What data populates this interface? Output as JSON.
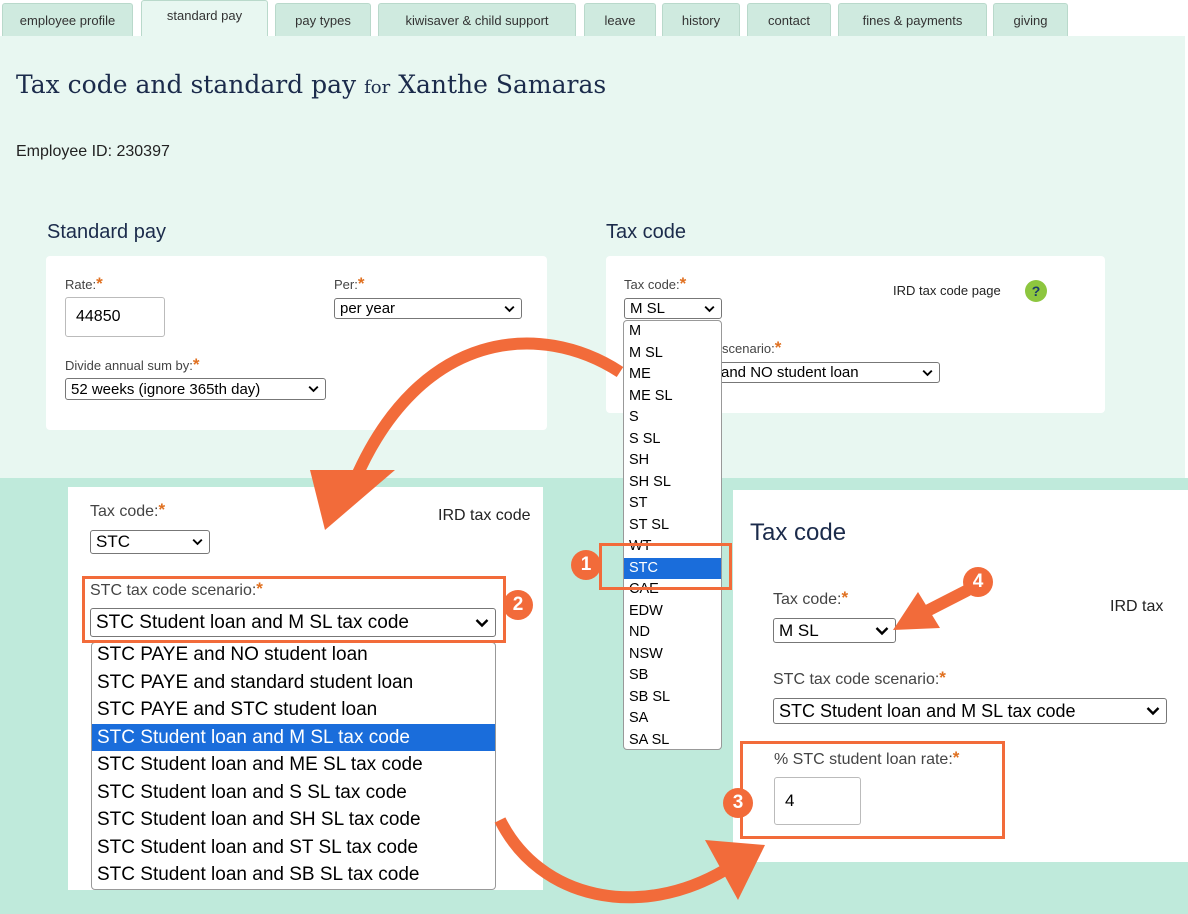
{
  "tabs": [
    "employee profile",
    "standard pay",
    "pay types",
    "kiwisaver & child support",
    "leave",
    "history",
    "contact",
    "fines & payments",
    "giving"
  ],
  "header": {
    "title": "Tax code and standard pay",
    "for": "for",
    "employee_name": "Xanthe Samaras",
    "employee_id": "Employee ID: 230397"
  },
  "required_marker": "*",
  "standard_pay": {
    "heading": "Standard pay",
    "rate_label": "Rate:",
    "rate_value": "44850",
    "per_label": "Per:",
    "per_value": "per year",
    "divide_label": "Divide annual sum by:",
    "divide_value": "52 weeks (ignore 365th day)"
  },
  "tax_code": {
    "heading": "Tax code",
    "label": "Tax code:",
    "value": "M SL",
    "ird_link": "IRD tax code page",
    "help": "?",
    "scenario_label_partial": "scenario:",
    "scenario_value_partial": "and NO student loan",
    "options": [
      "M",
      "M SL",
      "ME",
      "ME SL",
      "S",
      "S SL",
      "SH",
      "SH SL",
      "ST",
      "ST SL",
      "WT",
      "STC",
      "CAE",
      "EDW",
      "ND",
      "NSW",
      "SB",
      "SB SL",
      "SA",
      "SA SL"
    ],
    "highlighted_option": "STC"
  },
  "callout_left": {
    "tax_code_label": "Tax code:",
    "tax_code_value": "STC",
    "ird_link": "IRD tax code",
    "scenario_label": "STC tax code scenario:",
    "scenario_value": "STC Student loan and M SL tax code",
    "options": [
      "STC PAYE and NO student loan",
      "STC PAYE and standard student loan",
      "STC PAYE and STC student loan",
      "STC Student loan and M SL tax code",
      "STC Student loan and ME SL tax code",
      "STC Student loan and S SL tax code",
      "STC Student loan and SH SL tax code",
      "STC Student loan and ST SL tax code",
      "STC Student loan and SB SL tax code"
    ],
    "highlighted_option": "STC Student loan and M SL tax code"
  },
  "callout_right": {
    "heading": "Tax code",
    "tax_code_label": "Tax code:",
    "tax_code_value": "M SL",
    "ird_link": "IRD tax",
    "scenario_label": "STC tax code scenario:",
    "scenario_value": "STC Student loan and M SL tax code",
    "rate_label": "% STC student loan rate:",
    "rate_value": "4"
  },
  "steps": [
    "1",
    "2",
    "3",
    "4"
  ]
}
